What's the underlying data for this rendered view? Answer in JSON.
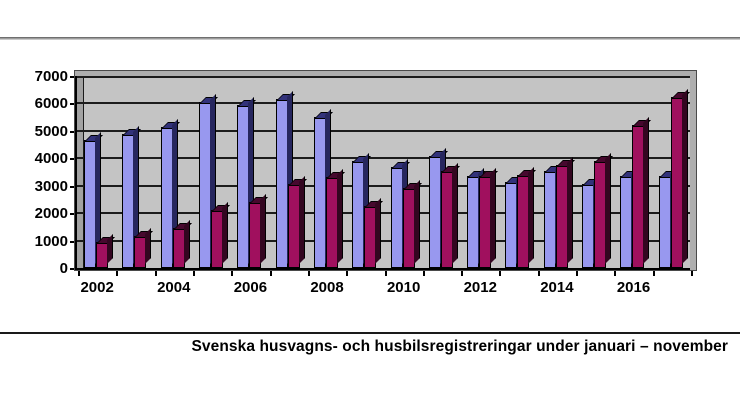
{
  "page": {
    "caption": "Svenska husvagns- och husbilsregistreringar under januari – november"
  },
  "chart_data": {
    "type": "bar",
    "style": "3d-effect-excel",
    "title": "Svenska husvagns- och husbilsregistreringar under januari – november",
    "xlabel": "",
    "ylabel": "",
    "categories": [
      "2002",
      "2003",
      "2004",
      "2005",
      "2006",
      "2007",
      "2008",
      "2009",
      "2010",
      "2011",
      "2012",
      "2013",
      "2014",
      "2015",
      "2016",
      "2017"
    ],
    "x_tick_labels_shown": [
      "2002",
      "2004",
      "2006",
      "2008",
      "2010",
      "2012",
      "2014",
      "2016"
    ],
    "series": [
      {
        "name": "left-purple-bars",
        "color": "#9898EF",
        "values": [
          4650,
          4900,
          5150,
          6050,
          5950,
          6150,
          5500,
          3900,
          3700,
          4100,
          3350,
          3150,
          3550,
          3050,
          3350,
          3350
        ]
      },
      {
        "name": "right-magenta-bars",
        "color": "#A0105E",
        "values": [
          950,
          1150,
          1450,
          2100,
          2400,
          3050,
          3300,
          2250,
          2900,
          3550,
          3350,
          3400,
          3750,
          3900,
          5200,
          6250
        ]
      }
    ],
    "ylim": [
      0,
      7000
    ],
    "yticks": [
      0,
      1000,
      2000,
      3000,
      4000,
      5000,
      6000,
      7000
    ],
    "grid": true,
    "legend": false,
    "plot_background": "#C4C4C4",
    "gridline_color": "#1C1C1C"
  }
}
